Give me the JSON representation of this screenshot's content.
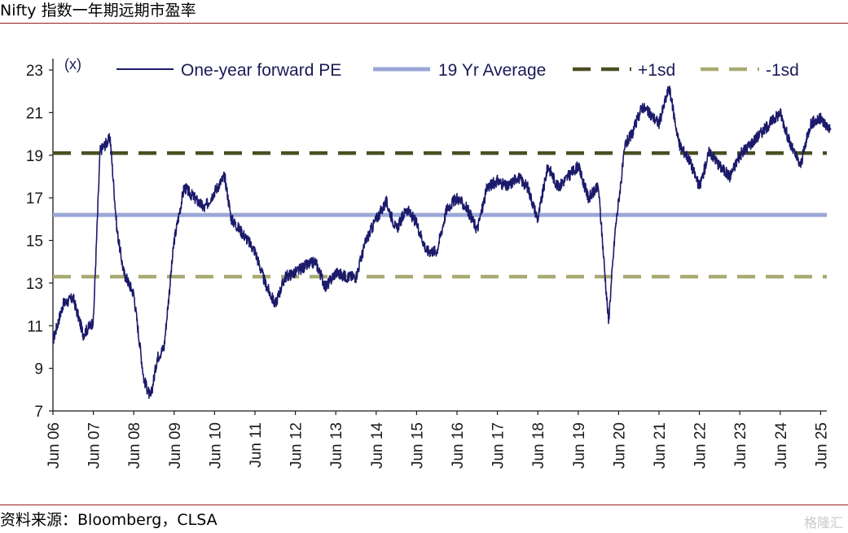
{
  "header": {
    "title": "Nifty 指数一年期远期市盈率"
  },
  "footer": {
    "source": "资料来源：Bloomberg，CLSA",
    "watermark": "格隆汇"
  },
  "colors": {
    "pe": "#1b1a6b",
    "avg": "#9aa6d6",
    "plus1sd": "#4b4f22",
    "minus1sd": "#a9aa72",
    "rule": "#9b1c20"
  },
  "chart_data": {
    "type": "line",
    "unit_label": "(x)",
    "ylim": [
      7,
      23
    ],
    "yticks": [
      7,
      9,
      11,
      13,
      15,
      17,
      19,
      21,
      23
    ],
    "xticks": [
      "Jun 06",
      "Jun 07",
      "Jun 08",
      "Jun 09",
      "Jun 10",
      "Jun 11",
      "Jun 12",
      "Jun 13",
      "Jun 14",
      "Jun 15",
      "Jun 16",
      "Jun 17",
      "Jun 18",
      "Jun 19",
      "Jun 20",
      "Jun 21",
      "Jun 22",
      "Jun 23",
      "Jun 24",
      "Jun 25"
    ],
    "xlim": [
      "Jun 06",
      "Sep 25"
    ],
    "legend_position": "top",
    "reference_lines": [
      {
        "name": "19 Yr Average",
        "value": 16.2,
        "style": "solid"
      },
      {
        "name": "+1sd",
        "value": 19.1,
        "style": "dashed"
      },
      {
        "name": "-1sd",
        "value": 13.3,
        "style": "dashed"
      }
    ],
    "series": [
      {
        "name": "One-year forward PE",
        "x": [
          "Jun 06",
          "Sep 06",
          "Dec 06",
          "Mar 07",
          "Jun 07",
          "Aug 07",
          "Nov 07",
          "Jan 08",
          "Mar 08",
          "Jun 08",
          "Sep 08",
          "Nov 08",
          "Jan 09",
          "Mar 09",
          "Jun 09",
          "Sep 09",
          "Dec 09",
          "Mar 10",
          "Jun 10",
          "Sep 10",
          "Nov 10",
          "Mar 11",
          "Jun 11",
          "Sep 11",
          "Dec 11",
          "Mar 12",
          "Jun 12",
          "Sep 12",
          "Dec 12",
          "Mar 13",
          "Jun 13",
          "Sep 13",
          "Dec 13",
          "Mar 14",
          "Jun 14",
          "Sep 14",
          "Dec 14",
          "Mar 15",
          "Jun 15",
          "Sep 15",
          "Dec 15",
          "Mar 16",
          "Jun 16",
          "Sep 16",
          "Dec 16",
          "Mar 17",
          "Jun 17",
          "Sep 17",
          "Dec 17",
          "Mar 18",
          "Jun 18",
          "Sep 18",
          "Dec 18",
          "Mar 19",
          "Jun 19",
          "Sep 19",
          "Dec 19",
          "Mar 20",
          "May 20",
          "Aug 20",
          "Oct 20",
          "Jan 21",
          "Jun 21",
          "Sep 21",
          "Dec 21",
          "Mar 22",
          "Jun 22",
          "Sep 22",
          "Dec 22",
          "Mar 23",
          "Jun 23",
          "Sep 23",
          "Dec 23",
          "Mar 24",
          "Jun 24",
          "Sep 24",
          "Dec 24",
          "Mar 25",
          "Jun 25",
          "Sep 25"
        ],
        "values": [
          10.3,
          12.0,
          12.3,
          10.6,
          11.2,
          19.2,
          19.8,
          15.5,
          13.5,
          12.5,
          8.5,
          7.6,
          9.5,
          10.0,
          15.0,
          17.5,
          17.0,
          16.5,
          17.3,
          18.0,
          16.0,
          15.2,
          14.5,
          13.0,
          12.0,
          13.3,
          13.5,
          13.8,
          14.0,
          12.8,
          13.5,
          13.3,
          13.3,
          15.0,
          16.0,
          16.8,
          15.5,
          16.5,
          15.8,
          14.5,
          14.5,
          16.5,
          17.0,
          16.5,
          15.5,
          17.5,
          17.8,
          17.5,
          18.0,
          17.5,
          16.0,
          18.5,
          17.5,
          18.0,
          18.5,
          17.0,
          17.5,
          11.2,
          15.5,
          19.5,
          20.0,
          21.3,
          20.5,
          22.2,
          19.5,
          18.8,
          17.5,
          19.2,
          18.5,
          18.0,
          19.0,
          19.5,
          20.0,
          20.5,
          21.0,
          19.5,
          18.5,
          20.5,
          20.7,
          20.2
        ]
      }
    ]
  }
}
